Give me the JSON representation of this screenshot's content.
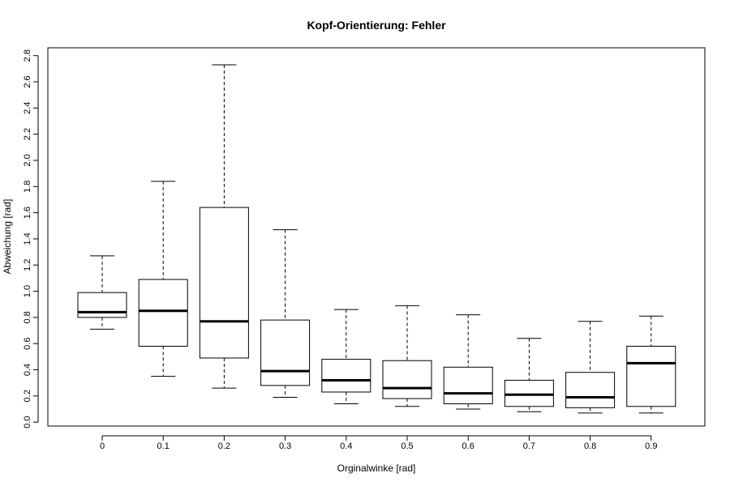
{
  "chart_data": {
    "type": "boxplot",
    "title": "Kopf-Orientierung: Fehler",
    "xlabel": "Orginalwinke [rad]",
    "ylabel": "Abweichung [rad]",
    "ylim": [
      -0.03,
      2.86
    ],
    "yticks": [
      "0.0",
      "0.2",
      "0.4",
      "0.6",
      "0.8",
      "1.0",
      "1.2",
      "1.4",
      "1.6",
      "1.8",
      "2.0",
      "2.2",
      "2.4",
      "2.6",
      "2.8"
    ],
    "grid": false,
    "categories": [
      "0",
      "0.1",
      "0.2",
      "0.3",
      "0.4",
      "0.5",
      "0.6",
      "0.7",
      "0.8",
      "0.9"
    ],
    "boxes": [
      {
        "min": 0.71,
        "q1": 0.8,
        "median": 0.84,
        "q3": 0.99,
        "max": 1.27
      },
      {
        "min": 0.35,
        "q1": 0.58,
        "median": 0.85,
        "q3": 1.09,
        "max": 1.84
      },
      {
        "min": 0.26,
        "q1": 0.49,
        "median": 0.77,
        "q3": 1.64,
        "max": 2.73
      },
      {
        "min": 0.19,
        "q1": 0.28,
        "median": 0.39,
        "q3": 0.78,
        "max": 1.47
      },
      {
        "min": 0.14,
        "q1": 0.23,
        "median": 0.32,
        "q3": 0.48,
        "max": 0.86
      },
      {
        "min": 0.12,
        "q1": 0.18,
        "median": 0.26,
        "q3": 0.47,
        "max": 0.89
      },
      {
        "min": 0.1,
        "q1": 0.14,
        "median": 0.22,
        "q3": 0.42,
        "max": 0.82
      },
      {
        "min": 0.08,
        "q1": 0.12,
        "median": 0.21,
        "q3": 0.32,
        "max": 0.64
      },
      {
        "min": 0.07,
        "q1": 0.11,
        "median": 0.19,
        "q3": 0.38,
        "max": 0.77
      },
      {
        "min": 0.07,
        "q1": 0.12,
        "median": 0.45,
        "q3": 0.58,
        "max": 0.81
      }
    ]
  }
}
